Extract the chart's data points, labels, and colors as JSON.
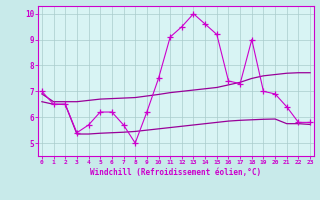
{
  "xlabel": "Windchill (Refroidissement éolien,°C)",
  "background_color": "#c8eaea",
  "plot_bg_color": "#d8f4f4",
  "line_color_main": "#cc00cc",
  "line_color_dark": "#990099",
  "x_ticks": [
    0,
    1,
    2,
    3,
    4,
    5,
    6,
    7,
    8,
    9,
    10,
    11,
    12,
    13,
    14,
    15,
    16,
    17,
    18,
    19,
    20,
    21,
    22,
    23
  ],
  "ylim": [
    4.5,
    10.3
  ],
  "xlim": [
    -0.3,
    23.3
  ],
  "grid_color": "#aacccc",
  "curve1_x": [
    0,
    1,
    2,
    3,
    4,
    5,
    6,
    7,
    8,
    9,
    10,
    11,
    12,
    13,
    14,
    15,
    16,
    17,
    18,
    19,
    20,
    21,
    22,
    23
  ],
  "curve1_y": [
    7.0,
    6.5,
    6.5,
    5.4,
    5.7,
    6.2,
    6.2,
    5.7,
    5.0,
    6.2,
    7.5,
    9.1,
    9.5,
    10.0,
    9.6,
    9.2,
    7.4,
    7.3,
    9.0,
    7.0,
    6.9,
    6.4,
    5.8,
    5.8
  ],
  "curve2_x": [
    0,
    1,
    2,
    3,
    4,
    5,
    6,
    7,
    8,
    9,
    10,
    11,
    12,
    13,
    14,
    15,
    16,
    17,
    18,
    19,
    20,
    21,
    22,
    23
  ],
  "curve2_y": [
    6.9,
    6.6,
    6.6,
    6.6,
    6.65,
    6.7,
    6.72,
    6.74,
    6.76,
    6.82,
    6.88,
    6.95,
    7.0,
    7.05,
    7.1,
    7.15,
    7.25,
    7.35,
    7.5,
    7.6,
    7.65,
    7.7,
    7.72,
    7.72
  ],
  "curve3_x": [
    0,
    1,
    2,
    3,
    4,
    5,
    6,
    7,
    8,
    9,
    10,
    11,
    12,
    13,
    14,
    15,
    16,
    17,
    18,
    19,
    20,
    21,
    22,
    23
  ],
  "curve3_y": [
    6.6,
    6.5,
    6.5,
    5.35,
    5.35,
    5.38,
    5.4,
    5.42,
    5.45,
    5.5,
    5.55,
    5.6,
    5.65,
    5.7,
    5.75,
    5.8,
    5.85,
    5.88,
    5.9,
    5.92,
    5.93,
    5.75,
    5.75,
    5.72
  ]
}
